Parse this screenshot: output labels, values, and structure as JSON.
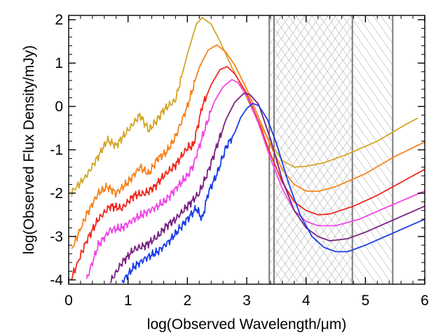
{
  "chart_data": {
    "type": "line",
    "title": "",
    "xlabel": "log(Observed Wavelength/μm)",
    "ylabel": "log(Observed Flux Density/mJy)",
    "xlim": [
      0,
      6
    ],
    "ylim": [
      -4.1,
      2.1
    ],
    "xticks": [
      {
        "value": 0,
        "label": "0"
      },
      {
        "value": 1,
        "label": "1"
      },
      {
        "value": 2,
        "label": "2"
      },
      {
        "value": 3,
        "label": "3"
      },
      {
        "value": 4,
        "label": "4"
      },
      {
        "value": 5,
        "label": "5"
      },
      {
        "value": 6,
        "label": "6"
      }
    ],
    "yticks": [
      {
        "value": -4,
        "label": "-4"
      },
      {
        "value": -3,
        "label": "-3"
      },
      {
        "value": -2,
        "label": "-2"
      },
      {
        "value": -1,
        "label": "-1"
      },
      {
        "value": 0,
        "label": "0"
      },
      {
        "value": 1,
        "label": "1"
      },
      {
        "value": 2,
        "label": "2"
      }
    ],
    "bands": [
      {
        "name": "band-a",
        "x0": 3.38,
        "x1": 4.78,
        "hatch": "diagonal-up"
      },
      {
        "name": "band-b",
        "x0": 3.46,
        "x1": 5.46,
        "hatch": "diagonal-down"
      }
    ],
    "series": [
      {
        "name": "gold",
        "color": "#d4a628",
        "points": [
          [
            0.05,
            -1.98
          ],
          [
            0.3,
            -1.6
          ],
          [
            0.5,
            -1.15
          ],
          [
            0.65,
            -0.78
          ],
          [
            0.8,
            -0.9
          ],
          [
            1.0,
            -0.55
          ],
          [
            1.2,
            -0.2
          ],
          [
            1.35,
            -0.55
          ],
          [
            1.5,
            -0.3
          ],
          [
            1.6,
            -0.08
          ],
          [
            1.8,
            0.15
          ],
          [
            2.0,
            1.2
          ],
          [
            2.15,
            1.9
          ],
          [
            2.25,
            2.05
          ],
          [
            2.4,
            1.9
          ],
          [
            2.55,
            1.5
          ],
          [
            2.75,
            0.9
          ],
          [
            2.9,
            0.5
          ],
          [
            3.05,
            0.05
          ],
          [
            3.2,
            -0.35
          ],
          [
            3.4,
            -0.85
          ],
          [
            3.6,
            -1.25
          ],
          [
            3.8,
            -1.4
          ],
          [
            4.0,
            -1.38
          ],
          [
            4.3,
            -1.3
          ],
          [
            4.7,
            -1.1
          ],
          [
            5.2,
            -0.8
          ],
          [
            5.7,
            -0.4
          ],
          [
            5.88,
            -0.27
          ]
        ]
      },
      {
        "name": "orange",
        "color": "#f5841f",
        "points": [
          [
            0.05,
            -3.3
          ],
          [
            0.3,
            -2.5
          ],
          [
            0.5,
            -2.0
          ],
          [
            0.65,
            -1.85
          ],
          [
            0.8,
            -2.0
          ],
          [
            1.0,
            -1.75
          ],
          [
            1.2,
            -1.4
          ],
          [
            1.35,
            -1.55
          ],
          [
            1.5,
            -1.2
          ],
          [
            1.65,
            -1.05
          ],
          [
            1.8,
            -0.7
          ],
          [
            2.0,
            0.0
          ],
          [
            2.2,
            0.9
          ],
          [
            2.35,
            1.3
          ],
          [
            2.5,
            1.42
          ],
          [
            2.65,
            1.25
          ],
          [
            2.8,
            0.95
          ],
          [
            3.0,
            0.4
          ],
          [
            3.2,
            -0.25
          ],
          [
            3.4,
            -0.9
          ],
          [
            3.6,
            -1.45
          ],
          [
            3.8,
            -1.8
          ],
          [
            4.0,
            -1.95
          ],
          [
            4.2,
            -1.96
          ],
          [
            4.5,
            -1.85
          ],
          [
            5.0,
            -1.55
          ],
          [
            5.5,
            -1.15
          ],
          [
            6.0,
            -0.82
          ]
        ]
      },
      {
        "name": "red",
        "color": "#ee2a1f",
        "points": [
          [
            0.05,
            -3.95
          ],
          [
            0.3,
            -3.1
          ],
          [
            0.5,
            -2.6
          ],
          [
            0.7,
            -2.3
          ],
          [
            0.9,
            -2.35
          ],
          [
            1.1,
            -2.05
          ],
          [
            1.3,
            -2.0
          ],
          [
            1.45,
            -1.85
          ],
          [
            1.6,
            -1.6
          ],
          [
            1.8,
            -1.35
          ],
          [
            2.0,
            -0.95
          ],
          [
            2.1,
            -0.9
          ],
          [
            2.25,
            0.0
          ],
          [
            2.4,
            0.5
          ],
          [
            2.55,
            0.85
          ],
          [
            2.67,
            0.92
          ],
          [
            2.8,
            0.75
          ],
          [
            3.0,
            0.3
          ],
          [
            3.2,
            -0.35
          ],
          [
            3.4,
            -1.1
          ],
          [
            3.6,
            -1.75
          ],
          [
            3.8,
            -2.2
          ],
          [
            4.0,
            -2.4
          ],
          [
            4.2,
            -2.5
          ],
          [
            4.4,
            -2.48
          ],
          [
            4.8,
            -2.3
          ],
          [
            5.2,
            -2.05
          ],
          [
            5.6,
            -1.75
          ],
          [
            6.0,
            -1.45
          ]
        ]
      },
      {
        "name": "magenta",
        "color": "#f046e6",
        "points": [
          [
            0.3,
            -4.0
          ],
          [
            0.5,
            -3.2
          ],
          [
            0.7,
            -2.85
          ],
          [
            0.9,
            -2.8
          ],
          [
            1.1,
            -2.6
          ],
          [
            1.3,
            -2.45
          ],
          [
            1.5,
            -2.3
          ],
          [
            1.65,
            -2.15
          ],
          [
            1.8,
            -1.9
          ],
          [
            2.0,
            -1.6
          ],
          [
            2.1,
            -1.35
          ],
          [
            2.3,
            -0.5
          ],
          [
            2.45,
            0.1
          ],
          [
            2.6,
            0.45
          ],
          [
            2.75,
            0.62
          ],
          [
            2.85,
            0.55
          ],
          [
            3.0,
            0.25
          ],
          [
            3.2,
            -0.4
          ],
          [
            3.4,
            -1.2
          ],
          [
            3.6,
            -1.9
          ],
          [
            3.8,
            -2.4
          ],
          [
            4.0,
            -2.65
          ],
          [
            4.2,
            -2.75
          ],
          [
            4.5,
            -2.75
          ],
          [
            4.9,
            -2.6
          ],
          [
            5.4,
            -2.3
          ],
          [
            6.0,
            -1.95
          ]
        ]
      },
      {
        "name": "purple",
        "color": "#7a2282",
        "points": [
          [
            0.7,
            -4.05
          ],
          [
            0.9,
            -3.6
          ],
          [
            1.1,
            -3.3
          ],
          [
            1.3,
            -3.2
          ],
          [
            1.5,
            -3.0
          ],
          [
            1.65,
            -2.75
          ],
          [
            1.8,
            -2.6
          ],
          [
            2.0,
            -2.3
          ],
          [
            2.2,
            -2.0
          ],
          [
            2.35,
            -1.5
          ],
          [
            2.5,
            -0.9
          ],
          [
            2.65,
            -0.3
          ],
          [
            2.8,
            0.1
          ],
          [
            2.95,
            0.3
          ],
          [
            3.05,
            0.28
          ],
          [
            3.2,
            0.05
          ],
          [
            3.4,
            -0.75
          ],
          [
            3.6,
            -1.7
          ],
          [
            3.8,
            -2.4
          ],
          [
            4.0,
            -2.8
          ],
          [
            4.2,
            -3.0
          ],
          [
            4.4,
            -3.1
          ],
          [
            4.7,
            -3.05
          ],
          [
            5.0,
            -2.9
          ],
          [
            5.5,
            -2.6
          ],
          [
            6.0,
            -2.3
          ]
        ]
      },
      {
        "name": "blue",
        "color": "#1a3ee8",
        "points": [
          [
            0.9,
            -4.05
          ],
          [
            1.1,
            -3.7
          ],
          [
            1.3,
            -3.5
          ],
          [
            1.5,
            -3.35
          ],
          [
            1.7,
            -3.1
          ],
          [
            1.85,
            -2.85
          ],
          [
            2.0,
            -2.6
          ],
          [
            2.15,
            -2.35
          ],
          [
            2.25,
            -2.6
          ],
          [
            2.35,
            -2.0
          ],
          [
            2.5,
            -1.55
          ],
          [
            2.65,
            -0.95
          ],
          [
            2.8,
            -0.6
          ],
          [
            2.9,
            -0.25
          ],
          [
            3.0,
            -0.05
          ],
          [
            3.1,
            0.07
          ],
          [
            3.2,
            0.02
          ],
          [
            3.35,
            -0.3
          ],
          [
            3.5,
            -0.85
          ],
          [
            3.7,
            -1.75
          ],
          [
            3.9,
            -2.5
          ],
          [
            4.1,
            -3.0
          ],
          [
            4.3,
            -3.25
          ],
          [
            4.5,
            -3.35
          ],
          [
            4.7,
            -3.35
          ],
          [
            5.0,
            -3.2
          ],
          [
            5.5,
            -2.9
          ],
          [
            6.0,
            -2.6
          ]
        ]
      }
    ]
  }
}
